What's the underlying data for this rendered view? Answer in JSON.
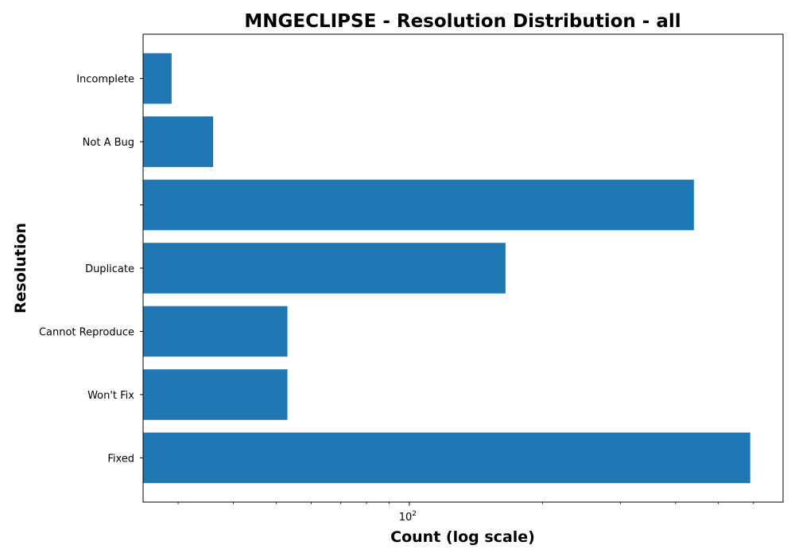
{
  "chart_data": {
    "type": "bar",
    "orientation": "horizontal",
    "title": "MNGECLIPSE - Resolution Distribution - all",
    "xlabel": "Count (log scale)",
    "ylabel": "Resolution",
    "x_scale": "log",
    "xlim": [
      25,
      700
    ],
    "x_tick_base": "10",
    "x_tick_exp": "2",
    "x_major_ticks": [
      100
    ],
    "x_minor_ticks": [
      30,
      40,
      50,
      60,
      70,
      80,
      90,
      200,
      300,
      400,
      500,
      600
    ],
    "categories": [
      "Fixed",
      "Won't Fix",
      "Cannot Reproduce",
      "Duplicate",
      "",
      "Not A Bug",
      "Incomplete"
    ],
    "values": [
      590,
      53,
      53,
      165,
      440,
      36,
      29
    ],
    "bar_color": "#1f77b4",
    "grid": false,
    "legend": "none"
  }
}
